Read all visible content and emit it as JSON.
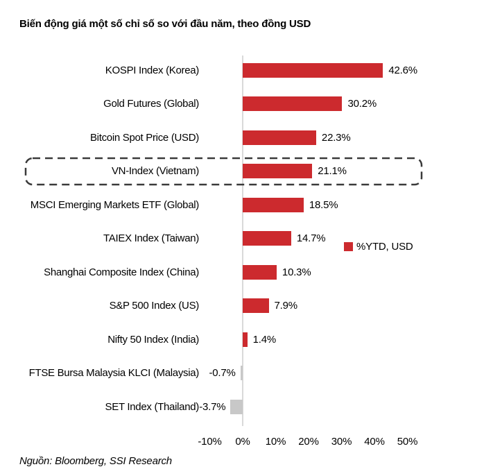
{
  "title": "Biến động giá một số chỉ số so với đầu năm, theo đồng USD",
  "source": "Nguồn: Bloomberg, SSI Research",
  "legend": {
    "label": "%YTD, USD"
  },
  "colors": {
    "positive_bar": "#cc2a2e",
    "negative_bar": "#c8c8c8",
    "axis_line": "#d9d9d9",
    "highlight_border": "#3a3a3a",
    "text": "#000000"
  },
  "chart_data": {
    "type": "bar",
    "orientation": "horizontal",
    "title": "Biến động giá một số chỉ số so với đầu năm, theo đồng USD",
    "legend_entries": [
      "%YTD, USD"
    ],
    "legend_position": "right-middle",
    "xlim": [
      -10,
      50
    ],
    "grid": false,
    "categories": [
      "KOSPI Index (Korea)",
      "Gold Futures (Global)",
      "Bitcoin Spot Price (USD)",
      "VN-Index (Vietnam)",
      "MSCI Emerging Markets ETF (Global)",
      "TAIEX Index (Taiwan)",
      "Shanghai Composite Index (China)",
      "S&P 500 Index (US)",
      "Nifty 50 Index (India)",
      "FTSE Bursa Malaysia KLCI (Malaysia)",
      "SET Index (Thailand)"
    ],
    "values": [
      42.6,
      30.2,
      22.3,
      21.1,
      18.5,
      14.7,
      10.3,
      7.9,
      1.4,
      -0.7,
      -3.7
    ],
    "value_labels": [
      "42.6%",
      "30.2%",
      "22.3%",
      "21.1%",
      "18.5%",
      "14.7%",
      "10.3%",
      "7.9%",
      "1.4%",
      "-0.7%",
      "-3.7%"
    ],
    "highlight_category": "VN-Index (Vietnam)",
    "x_tick_labels": [
      "-10%",
      "0%",
      "10%",
      "20%",
      "30%",
      "40%",
      "50%"
    ],
    "x_tick_values": [
      -10,
      0,
      10,
      20,
      30,
      40,
      50
    ]
  }
}
